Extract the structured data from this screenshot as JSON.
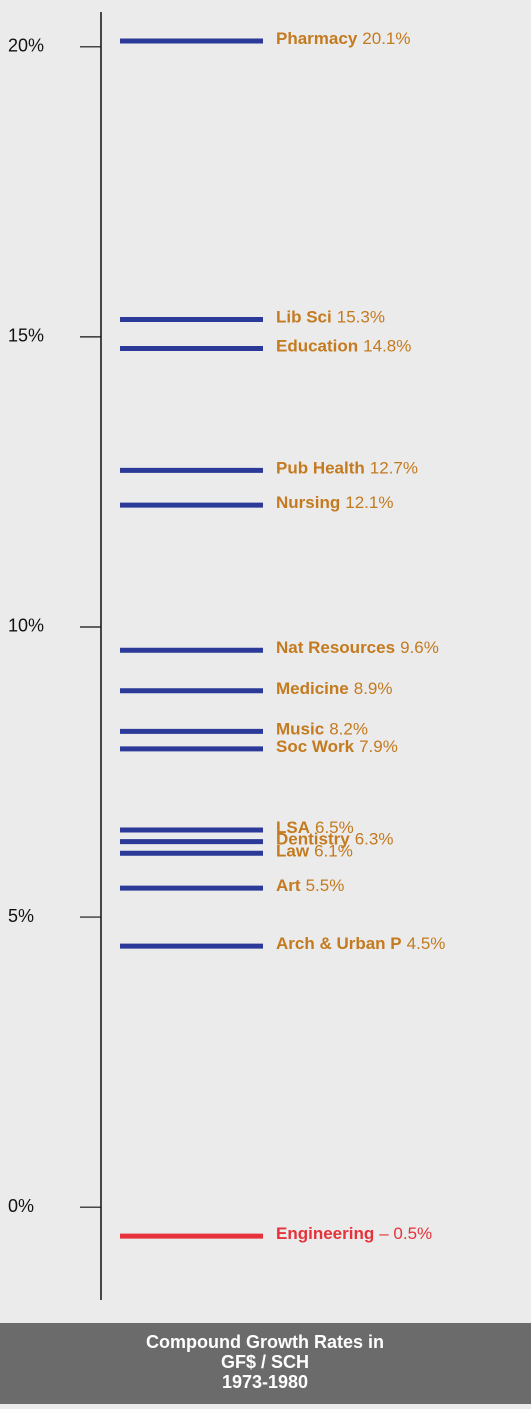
{
  "chart_data": {
    "type": "strip",
    "title": [
      "Compound Growth Rates in",
      "GF$ / SCH",
      "1973-1980"
    ],
    "categories": [
      "Pharmacy",
      "Lib Sci",
      "Education",
      "Pub Health",
      "Nursing",
      "Nat Resources",
      "Medicine",
      "Music",
      "Soc Work",
      "LSA",
      "Dentistry",
      "Law",
      "Art",
      "Arch & Urban P",
      "Engineering"
    ],
    "values": [
      20.1,
      15.3,
      14.8,
      12.7,
      12.1,
      9.6,
      8.9,
      8.2,
      7.9,
      6.5,
      6.3,
      6.1,
      5.5,
      4.5,
      -0.5
    ],
    "value_labels": [
      "20.1%",
      "15.3%",
      "14.8%",
      "12.7%",
      "12.1%",
      "9.6%",
      "8.9%",
      "8.2%",
      "7.9%",
      "6.5%",
      "6.3%",
      "6.1%",
      "5.5%",
      "4.5%",
      "– 0.5%"
    ],
    "colors": [
      "#2b3a98",
      "#2b3a98",
      "#2b3a98",
      "#2b3a98",
      "#2b3a98",
      "#2b3a98",
      "#2b3a98",
      "#2b3a98",
      "#2b3a98",
      "#2b3a98",
      "#2b3a98",
      "#2b3a98",
      "#2b3a98",
      "#2b3a98",
      "#e5323b"
    ],
    "label_colors": [
      "#c47a1e",
      "#c47a1e",
      "#c47a1e",
      "#c47a1e",
      "#c47a1e",
      "#c47a1e",
      "#c47a1e",
      "#c47a1e",
      "#c47a1e",
      "#c47a1e",
      "#c47a1e",
      "#c47a1e",
      "#c47a1e",
      "#c47a1e",
      "#e5323b"
    ],
    "ylim": [
      -1.6,
      20.6
    ],
    "yticks": [
      {
        "value": 0,
        "label": "0%"
      },
      {
        "value": 5,
        "label": "5%"
      },
      {
        "value": 10,
        "label": "10%"
      },
      {
        "value": 15,
        "label": "15%"
      },
      {
        "value": 20,
        "label": "20%"
      }
    ]
  }
}
